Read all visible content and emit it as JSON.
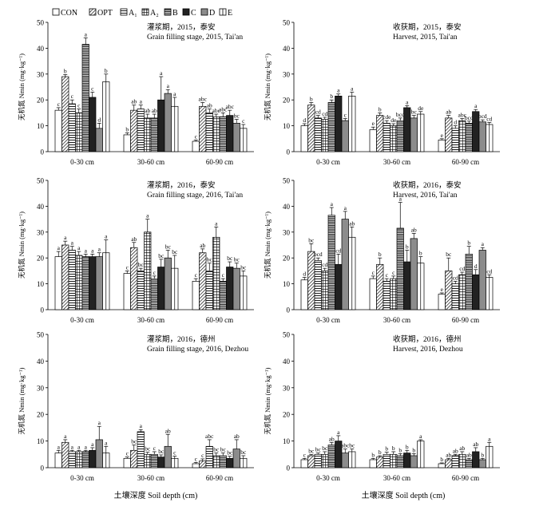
{
  "figure": {
    "legend": [
      "CON",
      "OPT",
      "A₁",
      "A₂",
      "B",
      "C",
      "D",
      "E"
    ],
    "xlabel": "土壤深度 Soil depth (cm)",
    "ylabel": "无机氮 Nmin (mg·kg⁻¹)"
  },
  "chart_data": [
    {
      "type": "bar",
      "title_cn": "灌浆期，2015，泰安",
      "title_en": "Grain filling stage, 2015, Tai'an",
      "categories": [
        "0-30 cm",
        "30-60 cm",
        "60-90 cm"
      ],
      "ylim": [
        0,
        50
      ],
      "yticks": [
        0,
        10,
        20,
        30,
        40,
        50
      ],
      "series": [
        {
          "name": "CON",
          "values": [
            16,
            6.5,
            4
          ],
          "errors": [
            1,
            0.8,
            0.5
          ],
          "letters": [
            "c",
            "b",
            "c"
          ]
        },
        {
          "name": "OPT",
          "values": [
            29,
            16,
            17.5
          ],
          "errors": [
            0.8,
            2,
            1.5
          ],
          "letters": [
            "b",
            "ab",
            "abc"
          ]
        },
        {
          "name": "A₁",
          "values": [
            18.5,
            16.5,
            15
          ],
          "errors": [
            1.5,
            1.5,
            1.5
          ],
          "letters": [
            "c",
            "a",
            "ab"
          ]
        },
        {
          "name": "A₂",
          "values": [
            15,
            13,
            13.5
          ],
          "errors": [
            1.5,
            1.5,
            1
          ],
          "letters": [
            "c",
            "ab",
            "abc"
          ]
        },
        {
          "name": "B",
          "values": [
            41.5,
            13,
            13.5
          ],
          "errors": [
            2.5,
            1.5,
            1.5
          ],
          "letters": [
            "a",
            "ab",
            "abc"
          ]
        },
        {
          "name": "C",
          "values": [
            21,
            20,
            14
          ],
          "errors": [
            2,
            9,
            2
          ],
          "letters": [
            "c",
            "a",
            "abc"
          ]
        },
        {
          "name": "D",
          "values": [
            9,
            22.5,
            11
          ],
          "errors": [
            2,
            1.5,
            1.5
          ],
          "letters": [
            "d",
            "a",
            "bc"
          ]
        },
        {
          "name": "E",
          "values": [
            27,
            17.5,
            9
          ],
          "errors": [
            3,
            3.5,
            1.5
          ],
          "letters": [
            "b",
            "a",
            "c"
          ]
        }
      ]
    },
    {
      "type": "bar",
      "title_cn": "收获期，2015，泰安",
      "title_en": "Harvest, 2015, Tai'an",
      "categories": [
        "0-30 cm",
        "30-60 cm",
        "60-90 cm"
      ],
      "ylim": [
        0,
        50
      ],
      "yticks": [
        0,
        10,
        20,
        30,
        40,
        50
      ],
      "series": [
        {
          "name": "CON",
          "values": [
            10,
            8.5,
            4.5
          ],
          "errors": [
            0.8,
            1,
            0.5
          ],
          "letters": [
            "d",
            "e",
            "e"
          ]
        },
        {
          "name": "OPT",
          "values": [
            18,
            14,
            13
          ],
          "errors": [
            1,
            1,
            1
          ],
          "letters": [
            "b",
            "b",
            "ab"
          ]
        },
        {
          "name": "A₁",
          "values": [
            13,
            11,
            9
          ],
          "errors": [
            1,
            1,
            1
          ],
          "letters": [
            "cd",
            "cde",
            "d"
          ]
        },
        {
          "name": "A₂",
          "values": [
            12.5,
            10,
            12
          ],
          "errors": [
            0.8,
            0.8,
            0.8
          ],
          "letters": [
            "cd",
            "de",
            "abc"
          ]
        },
        {
          "name": "B",
          "values": [
            19,
            12,
            11
          ],
          "errors": [
            1,
            1,
            0.8
          ],
          "letters": [
            "b",
            "bcd",
            "bcd"
          ]
        },
        {
          "name": "C",
          "values": [
            21.5,
            17,
            15.5
          ],
          "errors": [
            0.8,
            0.8,
            0.8
          ],
          "letters": [
            "a",
            "a",
            "a"
          ]
        },
        {
          "name": "D",
          "values": [
            12,
            13,
            11.5
          ],
          "errors": [
            0.8,
            1,
            0.8
          ],
          "letters": [
            "c",
            "bc",
            "bcd"
          ]
        },
        {
          "name": "E",
          "values": [
            21.5,
            14.5,
            10.5
          ],
          "errors": [
            1.5,
            1,
            0.8
          ],
          "letters": [
            "a",
            "de",
            "cd"
          ]
        }
      ]
    },
    {
      "type": "bar",
      "title_cn": "灌浆期，2016，泰安",
      "title_en": "Grain filling stage, 2016, Tai'an",
      "categories": [
        "0-30 cm",
        "30-60 cm",
        "60-90 cm"
      ],
      "ylim": [
        0,
        50
      ],
      "yticks": [
        0,
        10,
        20,
        30,
        40,
        50
      ],
      "series": [
        {
          "name": "CON",
          "values": [
            20.5,
            14,
            11
          ],
          "errors": [
            2,
            1,
            1
          ],
          "letters": [
            "a",
            "c",
            "c"
          ]
        },
        {
          "name": "OPT",
          "values": [
            25,
            24,
            22
          ],
          "errors": [
            1.5,
            2,
            1.5
          ],
          "letters": [
            "a",
            "ab",
            "ab"
          ]
        },
        {
          "name": "A₁",
          "values": [
            23,
            15,
            15
          ],
          "errors": [
            1.5,
            1,
            3
          ],
          "letters": [
            "a",
            "bc",
            "bc"
          ]
        },
        {
          "name": "A₂",
          "values": [
            21,
            30,
            28
          ],
          "errors": [
            1.5,
            5,
            4
          ],
          "letters": [
            "a",
            "a",
            "a"
          ]
        },
        {
          "name": "B",
          "values": [
            20.5,
            12,
            11
          ],
          "errors": [
            1,
            1,
            1
          ],
          "letters": [
            "a",
            "c",
            "c"
          ]
        },
        {
          "name": "C",
          "values": [
            20.5,
            16.5,
            16.5
          ],
          "errors": [
            1,
            3,
            2
          ],
          "letters": [
            "a",
            "bc",
            "bc"
          ]
        },
        {
          "name": "D",
          "values": [
            20.5,
            20,
            16
          ],
          "errors": [
            1.5,
            3,
            2
          ],
          "letters": [
            "a",
            "bc",
            "bc"
          ]
        },
        {
          "name": "E",
          "values": [
            22,
            16,
            13
          ],
          "errors": [
            5,
            5,
            2
          ],
          "letters": [
            "a",
            "bc",
            "bc"
          ]
        }
      ]
    },
    {
      "type": "bar",
      "title_cn": "收获期，2016，泰安",
      "title_en": "Harvest, 2016, Tai'an",
      "categories": [
        "0-30 cm",
        "30-60 cm",
        "60-90 cm"
      ],
      "ylim": [
        0,
        50
      ],
      "yticks": [
        0,
        10,
        20,
        30,
        40,
        50
      ],
      "series": [
        {
          "name": "CON",
          "values": [
            11.5,
            12,
            6
          ],
          "errors": [
            1,
            1,
            0.5
          ],
          "letters": [
            "d",
            "c",
            "e"
          ]
        },
        {
          "name": "OPT",
          "values": [
            22.5,
            17.5,
            15
          ],
          "errors": [
            3,
            2.5,
            5
          ],
          "letters": [
            "bc",
            "b",
            "bc"
          ]
        },
        {
          "name": "A₁",
          "values": [
            19,
            11,
            10
          ],
          "errors": [
            1,
            1,
            1
          ],
          "letters": [
            "bcd",
            "c",
            "cd"
          ]
        },
        {
          "name": "A₂",
          "values": [
            15,
            12,
            13.5
          ],
          "errors": [
            1,
            1,
            1
          ],
          "letters": [
            "cd",
            "c",
            "cd"
          ]
        },
        {
          "name": "B",
          "values": [
            36.5,
            31.5,
            21.5
          ],
          "errors": [
            3,
            10,
            3
          ],
          "letters": [
            "a",
            "a",
            "b"
          ]
        },
        {
          "name": "C",
          "values": [
            17.5,
            18.5,
            13.5
          ],
          "errors": [
            4,
            4.5,
            2
          ],
          "letters": [
            "cd",
            "b",
            "d"
          ]
        },
        {
          "name": "D",
          "values": [
            35,
            27.5,
            23
          ],
          "errors": [
            3,
            2,
            1
          ],
          "letters": [
            "a",
            "ab",
            "a"
          ]
        },
        {
          "name": "E",
          "values": [
            28,
            18,
            12.5
          ],
          "errors": [
            4,
            2.5,
            1
          ],
          "letters": [
            "ab",
            "b",
            "cd"
          ]
        }
      ]
    },
    {
      "type": "bar",
      "title_cn": "灌浆期，2016，德州",
      "title_en": "Grain filling stage, 2016, Dezhou",
      "categories": [
        "0-30 cm",
        "30-60 cm",
        "60-90 cm"
      ],
      "ylim": [
        0,
        50
      ],
      "yticks": [
        0,
        10,
        20,
        30,
        40,
        50
      ],
      "series": [
        {
          "name": "CON",
          "values": [
            5.5,
            3.5,
            1.5
          ],
          "errors": [
            1,
            0.5,
            0.5
          ],
          "letters": [
            "a",
            "c",
            "c"
          ]
        },
        {
          "name": "OPT",
          "values": [
            9.5,
            6.5,
            2.5
          ],
          "errors": [
            1,
            2,
            0.8
          ],
          "letters": [
            "a",
            "bc",
            "c"
          ]
        },
        {
          "name": "A₁",
          "values": [
            6,
            13.5,
            8
          ],
          "errors": [
            0.5,
            0.8,
            2.5
          ],
          "letters": [
            "a",
            "a",
            "abc"
          ]
        },
        {
          "name": "A₂",
          "values": [
            6,
            5,
            4.5
          ],
          "errors": [
            0.5,
            0.8,
            1
          ],
          "letters": [
            "a",
            "bc",
            "bc"
          ]
        },
        {
          "name": "B",
          "values": [
            6,
            5,
            4.5
          ],
          "errors": [
            0.5,
            1,
            1
          ],
          "letters": [
            "a",
            "c",
            "bc"
          ]
        },
        {
          "name": "C",
          "values": [
            6.5,
            4,
            3.5
          ],
          "errors": [
            1,
            0.8,
            0.8
          ],
          "letters": [
            "a",
            "bc",
            "bc"
          ]
        },
        {
          "name": "D",
          "values": [
            10.5,
            8,
            7
          ],
          "errors": [
            5,
            4.5,
            3.5
          ],
          "letters": [
            "a",
            "ab",
            "ab"
          ]
        },
        {
          "name": "E",
          "values": [
            5.5,
            3.5,
            3.5
          ],
          "errors": [
            2.5,
            0.8,
            1
          ],
          "letters": [
            "a",
            "c",
            "bc"
          ]
        }
      ]
    },
    {
      "type": "bar",
      "title_cn": "收获期，2016，德州",
      "title_en": "Harvest, 2016, Dezhou",
      "categories": [
        "0-30 cm",
        "30-60 cm",
        "60-90 cm"
      ],
      "ylim": [
        0,
        50
      ],
      "yticks": [
        0,
        10,
        20,
        30,
        40,
        50
      ],
      "series": [
        {
          "name": "CON",
          "values": [
            3,
            3,
            1.5
          ],
          "errors": [
            0.5,
            0.5,
            0.3
          ],
          "letters": [
            "c",
            "b",
            "b"
          ]
        },
        {
          "name": "OPT",
          "values": [
            4.5,
            4,
            3
          ],
          "errors": [
            0.5,
            0.5,
            0.5
          ],
          "letters": [
            "bc",
            "b",
            "ab"
          ]
        },
        {
          "name": "A₁",
          "values": [
            5,
            5,
            4.5
          ],
          "errors": [
            0.5,
            0.8,
            0.5
          ],
          "letters": [
            "bc",
            "b",
            "ab"
          ]
        },
        {
          "name": "A₂",
          "values": [
            5,
            5,
            5
          ],
          "errors": [
            1,
            1,
            1
          ],
          "letters": [
            "bc",
            "b",
            "ab"
          ]
        },
        {
          "name": "B",
          "values": [
            8.5,
            4.5,
            3
          ],
          "errors": [
            1,
            0.8,
            0.5
          ],
          "letters": [
            "ab",
            "b",
            "ab"
          ]
        },
        {
          "name": "C",
          "values": [
            10,
            5.5,
            6
          ],
          "errors": [
            2,
            1,
            1.5
          ],
          "letters": [
            "a",
            "b",
            "ab"
          ]
        },
        {
          "name": "D",
          "values": [
            5.5,
            4.5,
            3
          ],
          "errors": [
            1.5,
            0.8,
            0.5
          ],
          "letters": [
            "abc",
            "b",
            "b"
          ]
        },
        {
          "name": "E",
          "values": [
            6,
            10,
            8
          ],
          "errors": [
            1,
            0.5,
            1.5
          ],
          "letters": [
            "bc",
            "a",
            "a"
          ]
        }
      ]
    }
  ]
}
